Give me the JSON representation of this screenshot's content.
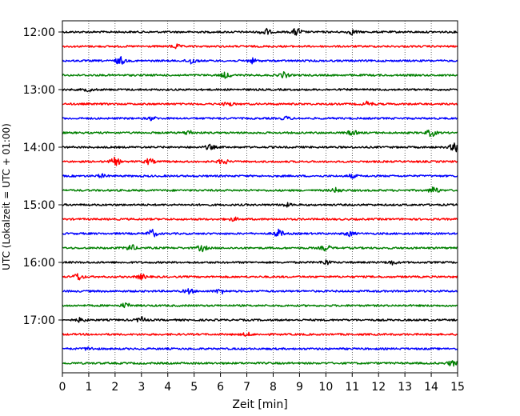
{
  "chart_data": {
    "type": "line",
    "title": "",
    "xlabel": "Zeit  [min]",
    "ylabel": "UTC (Lokalzeit = UTC + 01:00)",
    "xlim": [
      0,
      15
    ],
    "x_ticks": [
      "0",
      "1",
      "2",
      "3",
      "4",
      "5",
      "6",
      "7",
      "8",
      "9",
      "10",
      "11",
      "12",
      "13",
      "14",
      "15"
    ],
    "y_tick_labels": [
      "12:00",
      "13:00",
      "14:00",
      "15:00",
      "16:00",
      "17:00"
    ],
    "grid": "vertical dotted",
    "series_color_cycle": [
      "#000000",
      "#ff0000",
      "#0000ff",
      "#008000"
    ],
    "traces": [
      {
        "start": "12:00",
        "color": "#000000",
        "bursts": [
          {
            "x": 7.7,
            "amp": 0.45
          },
          {
            "x": 8.9,
            "amp": 0.5
          },
          {
            "x": 11.0,
            "amp": 0.3
          }
        ]
      },
      {
        "start": "12:15",
        "color": "#ff0000",
        "bursts": [
          {
            "x": 4.3,
            "amp": 0.25
          }
        ]
      },
      {
        "start": "12:30",
        "color": "#0000ff",
        "bursts": [
          {
            "x": 2.2,
            "amp": 0.5
          },
          {
            "x": 4.9,
            "amp": 0.4
          },
          {
            "x": 7.2,
            "amp": 0.3
          }
        ]
      },
      {
        "start": "12:45",
        "color": "#008000",
        "bursts": [
          {
            "x": 6.2,
            "amp": 0.35
          },
          {
            "x": 8.4,
            "amp": 0.35
          }
        ]
      },
      {
        "start": "13:00",
        "color": "#000000",
        "bursts": [
          {
            "x": 1.0,
            "amp": 0.2
          }
        ]
      },
      {
        "start": "13:15",
        "color": "#ff0000",
        "bursts": [
          {
            "x": 6.3,
            "amp": 0.25
          },
          {
            "x": 11.6,
            "amp": 0.3
          }
        ]
      },
      {
        "start": "13:30",
        "color": "#0000ff",
        "bursts": [
          {
            "x": 3.4,
            "amp": 0.2
          },
          {
            "x": 8.5,
            "amp": 0.2
          }
        ]
      },
      {
        "start": "13:45",
        "color": "#008000",
        "bursts": [
          {
            "x": 4.8,
            "amp": 0.3
          },
          {
            "x": 11.0,
            "amp": 0.3
          },
          {
            "x": 14.0,
            "amp": 0.45
          }
        ]
      },
      {
        "start": "14:00",
        "color": "#000000",
        "bursts": [
          {
            "x": 5.6,
            "amp": 0.3
          },
          {
            "x": 14.9,
            "amp": 0.6
          }
        ]
      },
      {
        "start": "14:15",
        "color": "#ff0000",
        "bursts": [
          {
            "x": 2.0,
            "amp": 0.5
          },
          {
            "x": 3.3,
            "amp": 0.35
          },
          {
            "x": 6.1,
            "amp": 0.35
          }
        ]
      },
      {
        "start": "14:30",
        "color": "#0000ff",
        "bursts": [
          {
            "x": 1.5,
            "amp": 0.2
          },
          {
            "x": 11.0,
            "amp": 0.2
          }
        ]
      },
      {
        "start": "14:45",
        "color": "#008000",
        "bursts": [
          {
            "x": 10.4,
            "amp": 0.3
          },
          {
            "x": 14.1,
            "amp": 0.45
          }
        ]
      },
      {
        "start": "15:00",
        "color": "#000000",
        "bursts": [
          {
            "x": 8.5,
            "amp": 0.2
          }
        ]
      },
      {
        "start": "15:15",
        "color": "#ff0000",
        "bursts": [
          {
            "x": 6.5,
            "amp": 0.2
          }
        ]
      },
      {
        "start": "15:30",
        "color": "#0000ff",
        "bursts": [
          {
            "x": 3.4,
            "amp": 0.5
          },
          {
            "x": 8.2,
            "amp": 0.5
          },
          {
            "x": 10.9,
            "amp": 0.3
          }
        ]
      },
      {
        "start": "15:45",
        "color": "#008000",
        "bursts": [
          {
            "x": 2.6,
            "amp": 0.4
          },
          {
            "x": 5.3,
            "amp": 0.4
          },
          {
            "x": 10.0,
            "amp": 0.35
          }
        ]
      },
      {
        "start": "16:00",
        "color": "#000000",
        "bursts": [
          {
            "x": 10.0,
            "amp": 0.3
          },
          {
            "x": 12.5,
            "amp": 0.25
          }
        ]
      },
      {
        "start": "16:15",
        "color": "#ff0000",
        "bursts": [
          {
            "x": 0.6,
            "amp": 0.45
          },
          {
            "x": 3.0,
            "amp": 0.3
          }
        ]
      },
      {
        "start": "16:30",
        "color": "#0000ff",
        "bursts": [
          {
            "x": 4.8,
            "amp": 0.3
          },
          {
            "x": 6.0,
            "amp": 0.3
          }
        ]
      },
      {
        "start": "16:45",
        "color": "#008000",
        "bursts": [
          {
            "x": 2.4,
            "amp": 0.3
          }
        ]
      },
      {
        "start": "17:00",
        "color": "#000000",
        "bursts": [
          {
            "x": 3.0,
            "amp": 0.35
          },
          {
            "x": 0.7,
            "amp": 0.25
          }
        ]
      },
      {
        "start": "17:15",
        "color": "#ff0000",
        "bursts": [
          {
            "x": 7.0,
            "amp": 0.2
          }
        ]
      },
      {
        "start": "17:30",
        "color": "#0000ff",
        "bursts": [
          {
            "x": 1.0,
            "amp": 0.2
          }
        ]
      },
      {
        "start": "17:45",
        "color": "#008000",
        "bursts": [
          {
            "x": 14.8,
            "amp": 0.35
          }
        ]
      }
    ]
  }
}
